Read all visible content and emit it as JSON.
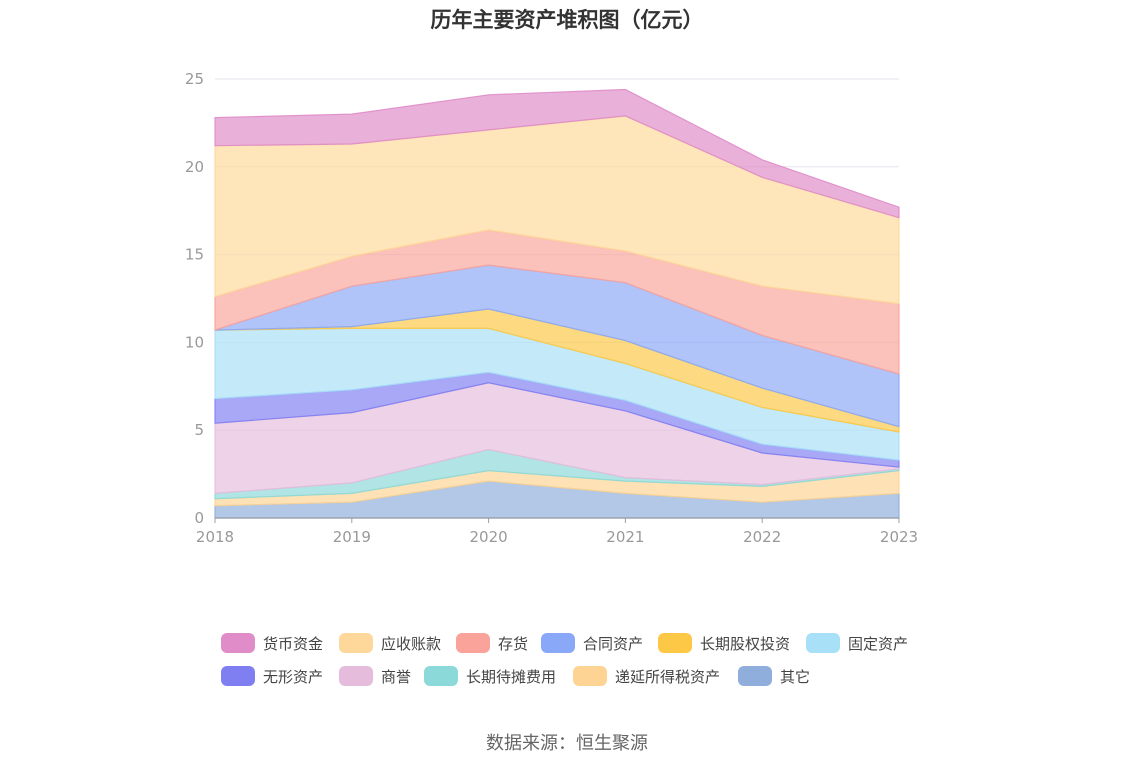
{
  "title": "历年主要资产堆积图（亿元）",
  "source": "数据来源：恒生聚源",
  "chart_data": {
    "type": "area",
    "stacked": true,
    "title": "历年主要资产堆积图（亿元）",
    "x": [
      "2018",
      "2019",
      "2020",
      "2021",
      "2022",
      "2023"
    ],
    "ylim": [
      0,
      25
    ],
    "yticks": [
      "0",
      "5",
      "10",
      "15",
      "20",
      "25"
    ],
    "grid": true,
    "legend_position": "bottom",
    "series": [
      {
        "name": "其它",
        "color": "#8faedb",
        "values": [
          0.7,
          0.9,
          2.1,
          1.4,
          0.9,
          1.4
        ]
      },
      {
        "name": "递延所得税资产",
        "color": "#fdd494",
        "values": [
          0.4,
          0.5,
          0.6,
          0.7,
          0.9,
          1.3
        ]
      },
      {
        "name": "长期待摊费用",
        "color": "#8cd9d9",
        "values": [
          0.3,
          0.6,
          1.2,
          0.2,
          0.1,
          0.1
        ]
      },
      {
        "name": "商誉",
        "color": "#e6bcdc",
        "values": [
          4.0,
          4.0,
          3.8,
          3.8,
          1.8,
          0.1
        ]
      },
      {
        "name": "无形资产",
        "color": "#7f7ff2",
        "values": [
          1.4,
          1.3,
          0.6,
          0.6,
          0.5,
          0.4
        ]
      },
      {
        "name": "固定资产",
        "color": "#a8e0f8",
        "values": [
          3.9,
          3.5,
          2.5,
          2.1,
          2.1,
          1.6
        ]
      },
      {
        "name": "长期股权投资",
        "color": "#fcc845",
        "values": [
          0.0,
          0.1,
          1.1,
          1.3,
          1.1,
          0.3
        ]
      },
      {
        "name": "合同资产",
        "color": "#8aa8f8",
        "values": [
          0.0,
          2.3,
          2.5,
          3.3,
          3.0,
          3.0
        ]
      },
      {
        "name": "存货",
        "color": "#f9a39b",
        "values": [
          1.9,
          1.7,
          2.0,
          1.8,
          2.8,
          4.0
        ]
      },
      {
        "name": "应收账款",
        "color": "#fdd89a",
        "values": [
          8.6,
          6.4,
          5.7,
          7.7,
          6.2,
          4.9
        ]
      },
      {
        "name": "货币资金",
        "color": "#df8cc8",
        "values": [
          1.6,
          1.7,
          2.0,
          1.5,
          1.0,
          0.6
        ]
      }
    ]
  },
  "legend": {
    "rows": [
      [
        {
          "label": "货币资金",
          "color": "#df8cc8"
        },
        {
          "label": "应收账款",
          "color": "#fdd89a"
        },
        {
          "label": "存货",
          "color": "#f9a39b"
        },
        {
          "label": "合同资产",
          "color": "#8aa8f8"
        },
        {
          "label": "长期股权投资",
          "color": "#fcc845"
        },
        {
          "label": "固定资产",
          "color": "#a8e0f8"
        }
      ],
      [
        {
          "label": "无形资产",
          "color": "#7f7ff2"
        },
        {
          "label": "商誉",
          "color": "#e6bcdc"
        },
        {
          "label": "长期待摊费用",
          "color": "#8cd9d9"
        },
        {
          "label": "递延所得税资产",
          "color": "#fdd494"
        },
        {
          "label": "其它",
          "color": "#8faedb"
        }
      ]
    ]
  }
}
